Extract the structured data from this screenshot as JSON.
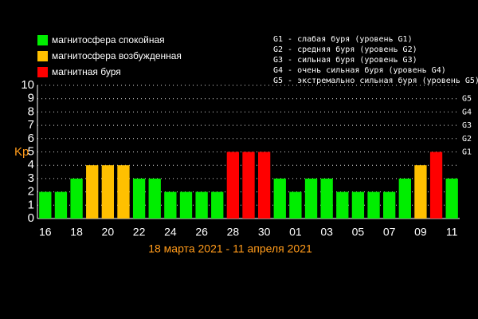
{
  "chart_data": {
    "type": "bar",
    "xlabel": "18 марта 2021 - 11 апреля 2021",
    "ylabel": "Kp",
    "categories": [
      "16",
      null,
      "18",
      null,
      "20",
      null,
      "22",
      null,
      "24",
      null,
      "26",
      null,
      "28",
      null,
      "30",
      null,
      "01",
      null,
      "03",
      null,
      "05",
      null,
      "07",
      null,
      "09",
      null,
      "11"
    ],
    "series": [
      {
        "name": "магнитосфера спокойная",
        "color": "#00ee00",
        "values": [
          2,
          2,
          3,
          null,
          null,
          null,
          3,
          3,
          2,
          2,
          2,
          2,
          null,
          null,
          null,
          3,
          2,
          3,
          3,
          2,
          2,
          2,
          2,
          3,
          null,
          null,
          3
        ]
      },
      {
        "name": "магнитосфера возбужденная",
        "color": "#ffc000",
        "values": [
          null,
          null,
          null,
          4,
          4,
          4,
          null,
          null,
          null,
          null,
          null,
          null,
          null,
          null,
          null,
          null,
          null,
          null,
          null,
          null,
          null,
          null,
          null,
          null,
          4,
          null,
          null
        ]
      },
      {
        "name": "магнитная буря",
        "color": "#ff0000",
        "values": [
          null,
          null,
          null,
          null,
          null,
          null,
          null,
          null,
          null,
          null,
          null,
          null,
          5,
          5,
          5,
          null,
          null,
          null,
          null,
          null,
          null,
          null,
          null,
          null,
          null,
          5,
          null
        ]
      }
    ],
    "stacked": true,
    "ylim": [
      0,
      10
    ],
    "yticks": [
      0,
      1,
      2,
      3,
      4,
      5,
      6,
      7,
      8,
      9,
      10
    ],
    "y2lim": [
      0,
      10
    ],
    "y2ticks": [
      {
        "value": 5,
        "label": "G1"
      },
      {
        "value": 6,
        "label": "G2"
      },
      {
        "value": 7,
        "label": "G3"
      },
      {
        "value": 8,
        "label": "G4"
      },
      {
        "value": 9,
        "label": "G5"
      }
    ],
    "notes": [
      "G1 - слабая буря (уровень G1)",
      "G2 - средняя буря (уровень G2)",
      "G3 - сильная буря (уровень G3)",
      "G4 - очень сильная буря (уровень G4)",
      "G5 - экстремально сильная буря (уровень G5)"
    ],
    "grid": true
  }
}
